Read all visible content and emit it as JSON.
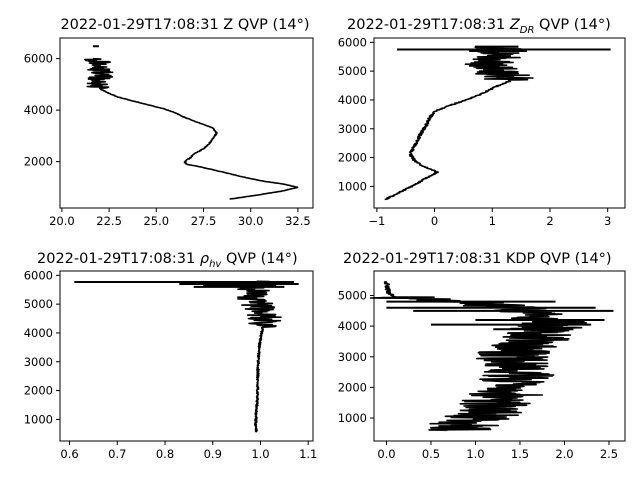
{
  "chart_data": [
    {
      "id": "z",
      "type": "line",
      "title": "2022-01-29T17:08:31 Z QVP (14°)",
      "xlabel": "",
      "ylabel": "",
      "xlim": [
        19.9,
        33.3
      ],
      "ylim": [
        200,
        6800
      ],
      "xticks": [
        20.0,
        22.5,
        25.0,
        27.5,
        30.0,
        32.5
      ],
      "xtick_labels": [
        "20.0",
        "22.5",
        "25.0",
        "27.5",
        "30.0",
        "32.5"
      ],
      "yticks": [
        2000,
        4000,
        6000
      ],
      "ytick_labels": [
        "2000",
        "4000",
        "6000"
      ],
      "profile": [
        [
          28.9,
          550
        ],
        [
          29.6,
          620
        ],
        [
          30.5,
          720
        ],
        [
          31.6,
          850
        ],
        [
          32.5,
          1000
        ],
        [
          31.8,
          1120
        ],
        [
          30.6,
          1250
        ],
        [
          29.5,
          1420
        ],
        [
          28.5,
          1600
        ],
        [
          27.3,
          1800
        ],
        [
          26.6,
          1900
        ],
        [
          26.5,
          2000
        ],
        [
          26.8,
          2150
        ],
        [
          27.0,
          2300
        ],
        [
          27.5,
          2500
        ],
        [
          27.8,
          2700
        ],
        [
          28.0,
          2900
        ],
        [
          28.2,
          3100
        ],
        [
          28.0,
          3300
        ],
        [
          27.5,
          3450
        ],
        [
          26.9,
          3600
        ],
        [
          26.4,
          3750
        ],
        [
          26.0,
          3900
        ],
        [
          25.4,
          4050
        ],
        [
          24.6,
          4200
        ],
        [
          23.8,
          4350
        ],
        [
          23.0,
          4500
        ],
        [
          22.5,
          4650
        ],
        [
          22.1,
          4800
        ],
        [
          21.8,
          5000
        ],
        [
          21.9,
          5200
        ],
        [
          22.3,
          5400
        ],
        [
          22.0,
          5550
        ],
        [
          21.8,
          5700
        ],
        [
          22.0,
          5850
        ],
        [
          21.7,
          6000
        ]
      ],
      "noise_from": 4850,
      "noise_to": 6050,
      "noise_amp": 0.6,
      "noise_seed": 3,
      "marks": [
        [
          21.8,
          6480
        ]
      ]
    },
    {
      "id": "zdr",
      "type": "line",
      "title": "2022-01-29T17:08:31 ",
      "title_symbol": "Z",
      "title_sub": "DR",
      "title_end": " QVP (14°)",
      "xlabel": "",
      "ylabel": "",
      "xlim": [
        -1.05,
        3.3
      ],
      "ylim": [
        250,
        6150
      ],
      "xticks": [
        -1,
        0,
        1,
        2,
        3
      ],
      "xtick_labels": [
        "−1",
        "0",
        "1",
        "2",
        "3"
      ],
      "yticks": [
        1000,
        2000,
        3000,
        4000,
        5000,
        6000
      ],
      "ytick_labels": [
        "1000",
        "2000",
        "3000",
        "4000",
        "5000",
        "6000"
      ],
      "profile": [
        [
          -0.85,
          550
        ],
        [
          -0.7,
          700
        ],
        [
          -0.5,
          900
        ],
        [
          -0.35,
          1050
        ],
        [
          -0.18,
          1250
        ],
        [
          0.05,
          1500
        ],
        [
          -0.2,
          1700
        ],
        [
          -0.35,
          1900
        ],
        [
          -0.42,
          2100
        ],
        [
          -0.38,
          2300
        ],
        [
          -0.3,
          2550
        ],
        [
          -0.25,
          2800
        ],
        [
          -0.15,
          3100
        ],
        [
          -0.08,
          3400
        ],
        [
          0.0,
          3600
        ],
        [
          0.25,
          3800
        ],
        [
          0.55,
          4000
        ],
        [
          0.8,
          4200
        ],
        [
          1.05,
          4450
        ],
        [
          1.3,
          4650
        ],
        [
          1.3,
          4800
        ],
        [
          1.0,
          5000
        ],
        [
          0.95,
          5200
        ],
        [
          1.0,
          5400
        ],
        [
          1.2,
          5600
        ],
        [
          1.05,
          5850
        ]
      ],
      "noise_from": 4700,
      "noise_to": 5900,
      "noise_amp": 0.45,
      "noise_seed": 7,
      "spikes": [
        [
          5750,
          -0.65,
          3.05
        ],
        [
          5700,
          0.6,
          1.6
        ],
        [
          5850,
          0.7,
          1.45
        ]
      ]
    },
    {
      "id": "rhohv",
      "type": "line",
      "title": "2022-01-29T17:08:31 ",
      "title_symbol": "ρ",
      "title_sub": "hv",
      "title_end": " QVP (14°)",
      "xlabel": "",
      "ylabel": "",
      "xlim": [
        0.58,
        1.11
      ],
      "ylim": [
        250,
        6150
      ],
      "xticks": [
        0.6,
        0.7,
        0.8,
        0.9,
        1.0,
        1.1
      ],
      "xtick_labels": [
        "0.6",
        "0.7",
        "0.8",
        "0.9",
        "1.0",
        "1.1"
      ],
      "yticks": [
        1000,
        2000,
        3000,
        4000,
        5000,
        6000
      ],
      "ytick_labels": [
        "1000",
        "2000",
        "3000",
        "4000",
        "5000",
        "6000"
      ],
      "profile": [
        [
          0.992,
          550
        ],
        [
          0.99,
          800
        ],
        [
          0.991,
          1200
        ],
        [
          0.993,
          1600
        ],
        [
          0.994,
          2000
        ],
        [
          0.994,
          2400
        ],
        [
          0.995,
          2800
        ],
        [
          0.996,
          3200
        ],
        [
          0.998,
          3600
        ],
        [
          1.001,
          3900
        ],
        [
          1.005,
          4200
        ],
        [
          1.01,
          4500
        ],
        [
          1.0,
          4800
        ],
        [
          0.99,
          5100
        ],
        [
          0.98,
          5400
        ],
        [
          1.0,
          5700
        ],
        [
          1.02,
          5800
        ]
      ],
      "noise_from": 4200,
      "noise_to": 5850,
      "noise_amp": 0.035,
      "noise_seed": 11,
      "spikes": [
        [
          5770,
          0.61,
          1.07
        ],
        [
          5700,
          0.83,
          1.08
        ],
        [
          5600,
          0.86,
          1.05
        ],
        [
          5650,
          0.88,
          1.03
        ]
      ]
    },
    {
      "id": "kdp",
      "type": "line",
      "title": "2022-01-29T17:08:31 KDP QVP (14°)",
      "xlabel": "",
      "ylabel": "",
      "xlim": [
        -0.14,
        2.68
      ],
      "ylim": [
        250,
        5800
      ],
      "xticks": [
        0.0,
        0.5,
        1.0,
        1.5,
        2.0,
        2.5
      ],
      "xtick_labels": [
        "0.0",
        "0.5",
        "1.0",
        "1.5",
        "2.0",
        "2.5"
      ],
      "yticks": [
        1000,
        2000,
        3000,
        4000,
        5000
      ],
      "ytick_labels": [
        "1000",
        "2000",
        "3000",
        "4000",
        "5000"
      ],
      "profile": [
        [
          0.9,
          600
        ],
        [
          0.85,
          800
        ],
        [
          1.0,
          1000
        ],
        [
          1.15,
          1200
        ],
        [
          1.25,
          1500
        ],
        [
          1.35,
          1800
        ],
        [
          1.4,
          2100
        ],
        [
          1.5,
          2400
        ],
        [
          1.45,
          2700
        ],
        [
          1.4,
          3000
        ],
        [
          1.5,
          3300
        ],
        [
          1.65,
          3600
        ],
        [
          1.8,
          3900
        ],
        [
          1.85,
          4200
        ],
        [
          1.6,
          4500
        ],
        [
          1.1,
          4750
        ],
        [
          0.5,
          4850
        ],
        [
          0.1,
          4950
        ],
        [
          0.02,
          5100
        ],
        [
          0.0,
          5450
        ]
      ],
      "noise_from": 550,
      "noise_to": 4950,
      "noise_amp": 0.42,
      "noise_seed": 19,
      "spikes": [
        [
          4600,
          0.0,
          2.35
        ],
        [
          4500,
          0.3,
          2.55
        ],
        [
          4200,
          1.0,
          2.45
        ],
        [
          3900,
          1.2,
          2.1
        ],
        [
          4050,
          0.5,
          2.3
        ],
        [
          4800,
          0.0,
          1.9
        ]
      ]
    }
  ]
}
